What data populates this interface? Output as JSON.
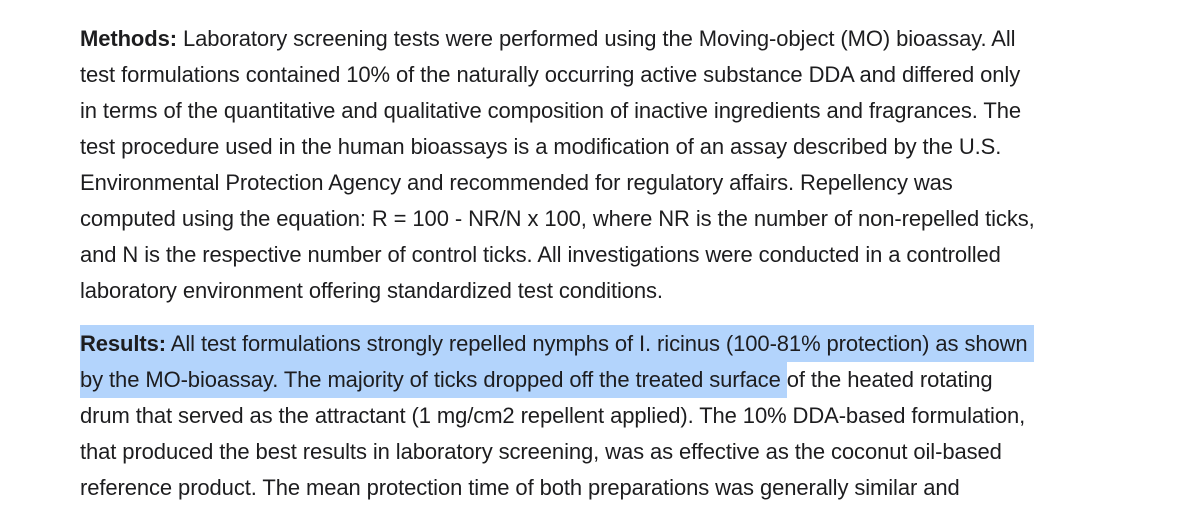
{
  "colors": {
    "background": "#ffffff",
    "text": "#1d1d1f",
    "selection_bg": "#b3d4fc"
  },
  "document": {
    "paragraphs": [
      {
        "name": "methods",
        "lines": [
          [
            {
              "text": "Methods:",
              "bold": true
            },
            {
              "text": " Laboratory screening tests were performed using the Moving-object (MO) bioassay. All"
            }
          ],
          [
            {
              "text": "test formulations contained 10% of the naturally occurring active substance DDA and differed only"
            }
          ],
          [
            {
              "text": "in terms of the quantitative and qualitative composition of inactive ingredients and fragrances. The"
            }
          ],
          [
            {
              "text": "test procedure used in the human bioassays is a modification of an assay described by the U.S."
            }
          ],
          [
            {
              "text": "Environmental Protection Agency and recommended for regulatory affairs. Repellency was"
            }
          ],
          [
            {
              "text": "computed using the equation: R = 100 - NR/N x 100, where NR is the number of non-repelled ticks,"
            }
          ],
          [
            {
              "text": "and N is the respective number of control ticks. All investigations were conducted in a controlled"
            }
          ],
          [
            {
              "text": "laboratory environment offering standardized test conditions."
            }
          ]
        ]
      },
      {
        "name": "results",
        "lines": [
          [
            {
              "text": "Results:",
              "bold": true,
              "highlight": true
            },
            {
              "text": " All test formulations strongly repelled nymphs of I. ricinus (100-81% protection) as shown ",
              "highlight": true
            }
          ],
          [
            {
              "text": "by the MO-bioassay. The majority of ticks dropped off the treated surface ",
              "highlight": true
            },
            {
              "text": "of the heated rotating"
            }
          ],
          [
            {
              "text": "drum that served as the attractant (1 mg/cm2 repellent applied). The 10% DDA-based formulation,"
            }
          ],
          [
            {
              "text": "that produced the best results in laboratory screening, was as effective as the coconut oil-based"
            }
          ],
          [
            {
              "text": "reference product. The mean protection time of both preparations was generally similar and"
            }
          ]
        ]
      }
    ]
  }
}
